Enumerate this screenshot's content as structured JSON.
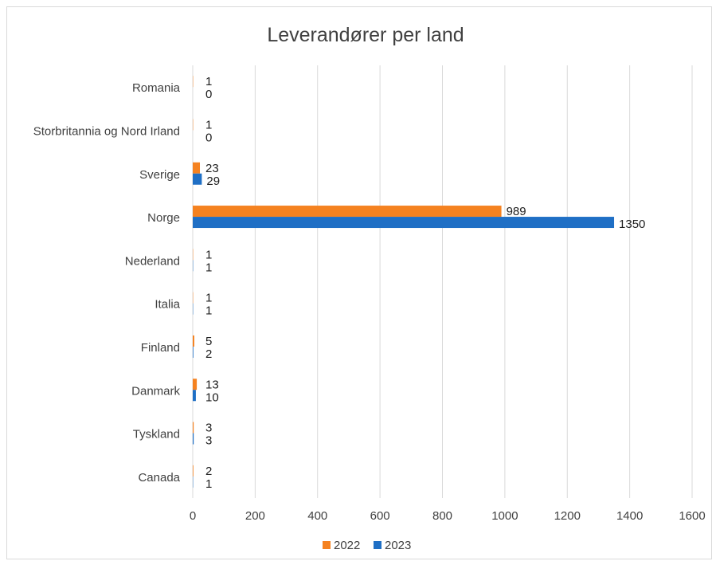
{
  "chart_data": {
    "type": "bar",
    "orientation": "horizontal",
    "title": "Leverandører per land",
    "xlabel": "",
    "ylabel": "",
    "categories": [
      "Romania",
      "Storbritannia og Nord Irland",
      "Sverige",
      "Norge",
      "Nederland",
      "Italia",
      "Finland",
      "Danmark",
      "Tyskland",
      "Canada"
    ],
    "series": [
      {
        "name": "2022",
        "color": "#F58220",
        "values": [
          1,
          1,
          23,
          989,
          1,
          1,
          5,
          13,
          3,
          2
        ]
      },
      {
        "name": "2023",
        "color": "#1F6FC5",
        "values": [
          0,
          0,
          29,
          1350,
          1,
          1,
          2,
          10,
          3,
          1
        ]
      }
    ],
    "xlim": [
      0,
      1600
    ],
    "xticks": [
      0,
      200,
      400,
      600,
      800,
      1000,
      1200,
      1400,
      1600
    ],
    "grid": "vertical",
    "data_labels": true,
    "legend": "bottom-center"
  }
}
